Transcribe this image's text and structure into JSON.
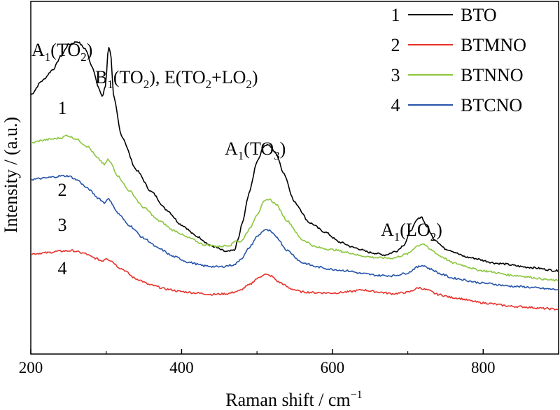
{
  "chart_data": {
    "type": "line",
    "title": "",
    "xlabel": "Raman shift / cm",
    "xlabel_superscript": "−1",
    "ylabel": "Intensity / (a.u.)",
    "xlim": [
      200,
      900
    ],
    "ylim": [
      0,
      100
    ],
    "x_ticks": [
      200,
      400,
      600,
      800
    ],
    "x_tick_labels": [
      "200",
      "400",
      "600",
      "800"
    ],
    "y_ticks_shown": false,
    "grid": false,
    "legend": {
      "placement": "top-right",
      "entries": [
        {
          "number": "1",
          "name": "BTO",
          "color": "#000000"
        },
        {
          "number": "2",
          "name": "BTMNO",
          "color": "#e8322c"
        },
        {
          "number": "3",
          "name": "BTNNO",
          "color": "#8cc63e"
        },
        {
          "number": "4",
          "name": "BTCNO",
          "color": "#2553a8"
        }
      ]
    },
    "annotations": [
      {
        "base": "A",
        "sub1": "1",
        "mid": "(TO",
        "sub2": "2",
        "end": ")",
        "at_x": 262
      },
      {
        "base": "B",
        "sub1": "1",
        "mid": "(TO",
        "sub2": "2",
        "end": "), E(TO",
        "sub3": "2",
        "end2": "+LO",
        "sub4": "2",
        "end3": ")",
        "at_x": 305
      },
      {
        "base": "A",
        "sub1": "1",
        "mid": "(TO",
        "sub2": "3",
        "end": ")",
        "at_x": 512
      },
      {
        "base": "A",
        "sub1": "1",
        "mid": "(LO",
        "sub2": "2",
        "end": ")",
        "at_x": 718
      }
    ],
    "curve_labels": [
      "1",
      "2",
      "3",
      "4"
    ],
    "series": [
      {
        "name": "BTO",
        "color": "#000000",
        "x": [
          200,
          215,
          230,
          240,
          250,
          262,
          272,
          282,
          290,
          295,
          299,
          303,
          306,
          310,
          320,
          340,
          360,
          380,
          400,
          420,
          440,
          460,
          470,
          475,
          480,
          490,
          500,
          510,
          515,
          525,
          535,
          550,
          570,
          590,
          610,
          630,
          650,
          670,
          685,
          695,
          705,
          713,
          718,
          725,
          735,
          750,
          780,
          820,
          860,
          900
        ],
        "y": [
          73.5,
          77.5,
          80.8,
          84.5,
          87.8,
          88.6,
          86.6,
          81.3,
          75.3,
          73.0,
          76.0,
          87.3,
          85.2,
          72.8,
          62.0,
          52.2,
          46.0,
          40.9,
          36.6,
          33.4,
          30.6,
          29.0,
          29.4,
          32.5,
          36.8,
          46.0,
          54.7,
          59.2,
          59.4,
          57.0,
          51.5,
          43.0,
          37.2,
          34.6,
          31.7,
          30.1,
          28.8,
          28.1,
          29.2,
          31.0,
          35.4,
          38.2,
          39.0,
          36.2,
          32.6,
          29.8,
          27.4,
          25.7,
          24.6,
          23.6
        ]
      },
      {
        "name": "BTMNO",
        "color": "#e8322c",
        "x": [
          200,
          220,
          240,
          255,
          270,
          285,
          295,
          300,
          305,
          320,
          340,
          360,
          380,
          400,
          420,
          440,
          460,
          475,
          490,
          500,
          510,
          518,
          530,
          545,
          560,
          580,
          600,
          620,
          640,
          660,
          680,
          700,
          715,
          725,
          740,
          760,
          800,
          840,
          900
        ],
        "y": [
          28.4,
          28.7,
          29.2,
          29.3,
          28.6,
          27.2,
          26.4,
          27.2,
          26.6,
          24.2,
          21.3,
          19.5,
          18.4,
          17.7,
          17.3,
          16.9,
          17.1,
          17.8,
          19.6,
          21.4,
          22.6,
          22.2,
          20.3,
          18.5,
          17.6,
          17.4,
          17.3,
          17.6,
          18.2,
          17.6,
          17.1,
          17.5,
          18.8,
          18.2,
          16.9,
          16.0,
          14.5,
          13.5,
          12.7
        ]
      },
      {
        "name": "BTNNO",
        "color": "#8cc63e",
        "x": [
          200,
          215,
          230,
          240,
          248,
          260,
          275,
          290,
          298,
          302,
          306,
          315,
          330,
          350,
          370,
          390,
          410,
          430,
          450,
          465,
          472,
          478,
          490,
          500,
          510,
          516,
          525,
          540,
          560,
          580,
          600,
          620,
          640,
          660,
          680,
          700,
          712,
          720,
          730,
          745,
          760,
          800,
          840,
          900
        ],
        "y": [
          59.8,
          60.6,
          61.0,
          61.3,
          62.0,
          61.0,
          58.9,
          55.3,
          53.6,
          55.2,
          54.2,
          50.6,
          46.4,
          41.5,
          37.8,
          35.0,
          32.9,
          31.0,
          30.5,
          30.9,
          32.3,
          31.7,
          35.4,
          39.6,
          43.3,
          44.0,
          42.5,
          37.8,
          32.4,
          30.2,
          29.6,
          28.8,
          27.8,
          27.3,
          27.2,
          28.4,
          30.6,
          31.3,
          29.6,
          27.6,
          25.8,
          23.6,
          22.3,
          20.8
        ]
      },
      {
        "name": "BTCNO",
        "color": "#2553a8",
        "x": [
          200,
          215,
          230,
          240,
          250,
          262,
          275,
          290,
          298,
          302,
          307,
          315,
          330,
          350,
          370,
          390,
          410,
          430,
          450,
          470,
          480,
          490,
          500,
          510,
          516,
          525,
          540,
          560,
          580,
          600,
          620,
          640,
          660,
          680,
          700,
          712,
          720,
          730,
          745,
          760,
          800,
          840,
          900
        ],
        "y": [
          49.5,
          49.8,
          50.2,
          50.5,
          50.5,
          49.3,
          47.0,
          44.2,
          42.8,
          44.2,
          42.9,
          40.0,
          36.6,
          32.8,
          29.9,
          27.6,
          26.0,
          25.0,
          24.7,
          25.3,
          27.2,
          30.2,
          33.3,
          35.2,
          35.0,
          33.4,
          29.4,
          25.9,
          24.7,
          24.0,
          23.6,
          22.8,
          22.3,
          22.2,
          23.0,
          24.6,
          25.2,
          24.1,
          22.6,
          21.5,
          20.1,
          19.2,
          18.3
        ]
      }
    ]
  }
}
